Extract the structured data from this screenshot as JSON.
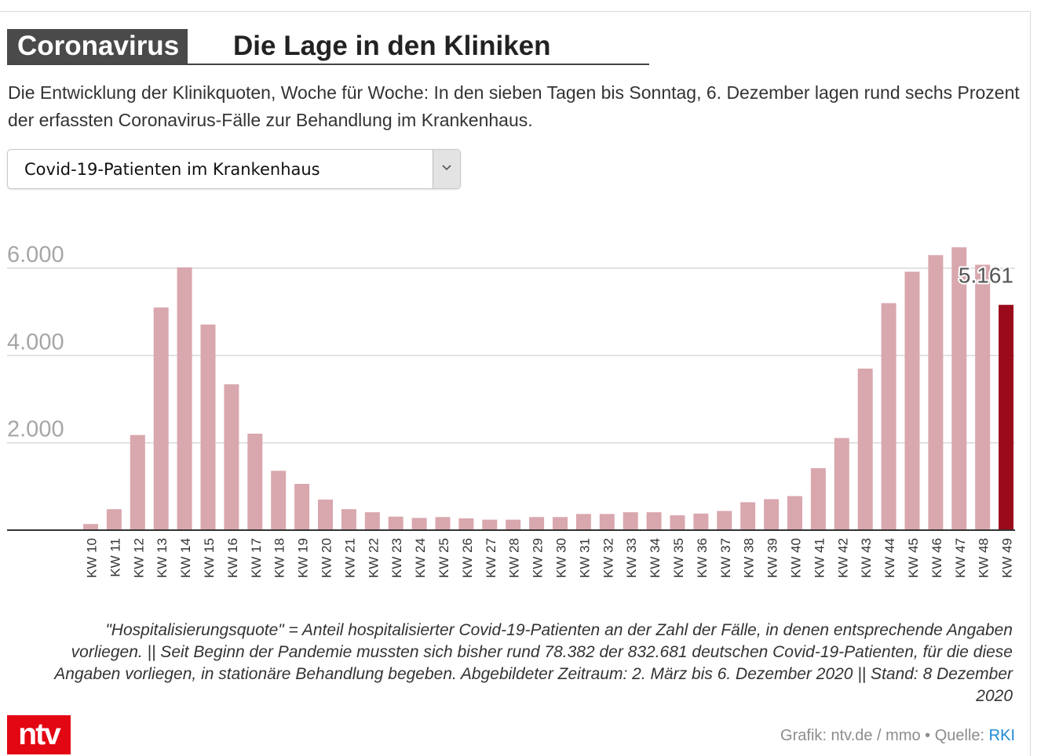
{
  "header": {
    "kicker": "Coronavirus",
    "headline": "Die Lage in den Kliniken",
    "intro": "Die Entwicklung der Klinikquoten, Woche für Woche: In den sieben Tagen bis Sonntag, 6. Dezember lagen rund sechs Prozent der erfassten Coronavirus-Fälle zur Behandlung im Krankenhaus."
  },
  "dropdown": {
    "selected": "Covid-19-Patienten im Krankenhaus",
    "icon": "chevron-down-icon"
  },
  "chart_data": {
    "type": "bar",
    "categories": [
      "KW 10",
      "KW 11",
      "KW 12",
      "KW 13",
      "KW 14",
      "KW 15",
      "KW 16",
      "KW 17",
      "KW 18",
      "KW 19",
      "KW 20",
      "KW 21",
      "KW 22",
      "KW 23",
      "KW 24",
      "KW 25",
      "KW 26",
      "KW 27",
      "KW 28",
      "KW 29",
      "KW 30",
      "KW 31",
      "KW 32",
      "KW 33",
      "KW 34",
      "KW 35",
      "KW 36",
      "KW 37",
      "KW 38",
      "KW 39",
      "KW 40",
      "KW 41",
      "KW 42",
      "KW 43",
      "KW 44",
      "KW 45",
      "KW 46",
      "KW 47",
      "KW 48",
      "KW 49"
    ],
    "values": [
      140,
      480,
      2180,
      5100,
      6020,
      4710,
      3340,
      2210,
      1360,
      1060,
      700,
      480,
      410,
      310,
      280,
      300,
      270,
      240,
      240,
      300,
      300,
      370,
      370,
      410,
      410,
      340,
      380,
      440,
      640,
      710,
      780,
      1420,
      2110,
      3700,
      5200,
      5920,
      6300,
      6480,
      6080,
      5161
    ],
    "yticks": [
      2000,
      4000,
      6000
    ],
    "ytick_labels": [
      "2.000",
      "4.000",
      "6.000"
    ],
    "ylim": [
      0,
      6500
    ],
    "highlight_label": "5.161",
    "colors": {
      "bar": "#d9a7ae",
      "highlight": "#9b0a1b",
      "grid": "#d8d8d8",
      "tick_text": "#a6a6a6"
    }
  },
  "footer": {
    "note": "\"Hospitalisierungsquote\" = Anteil hospitalisierter Covid-19-Patienten an der Zahl der Fälle, in denen entsprechende Angaben vorliegen. || Seit Beginn der Pandemie mussten sich bisher rund 78.382 der 832.681 deutschen Covid-19-Patienten, für die diese Angaben vorliegen, in stationäre Behandlung begeben. Abgebildeter Zeitraum: 2. März bis 6. Dezember 2020 || Stand: 8 Dezember 2020",
    "logo": "ntv",
    "credit_prefix": "Grafik: ntv.de / mmo • Quelle: ",
    "source": "RKI"
  }
}
